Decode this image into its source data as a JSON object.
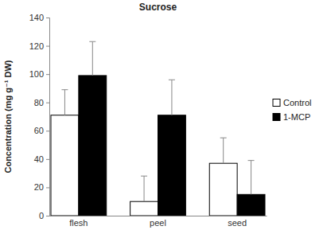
{
  "chart_data": {
    "type": "bar",
    "title": "Sucrose",
    "y_label": "Concentration (mg g⁻¹ DW)",
    "categories": [
      "flesh",
      "peel",
      "seed"
    ],
    "series": [
      {
        "name": "Control",
        "color": "#ffffff",
        "values": [
          71,
          10,
          37
        ],
        "errors": [
          18,
          18,
          18
        ]
      },
      {
        "name": "1-MCP",
        "color": "#000000",
        "values": [
          99,
          71,
          15
        ],
        "errors": [
          24,
          25,
          24
        ]
      }
    ],
    "ylim": [
      0,
      140
    ],
    "yticks": [
      0,
      20,
      40,
      60,
      80,
      100,
      120,
      140
    ],
    "grid": false,
    "legend": "right"
  }
}
